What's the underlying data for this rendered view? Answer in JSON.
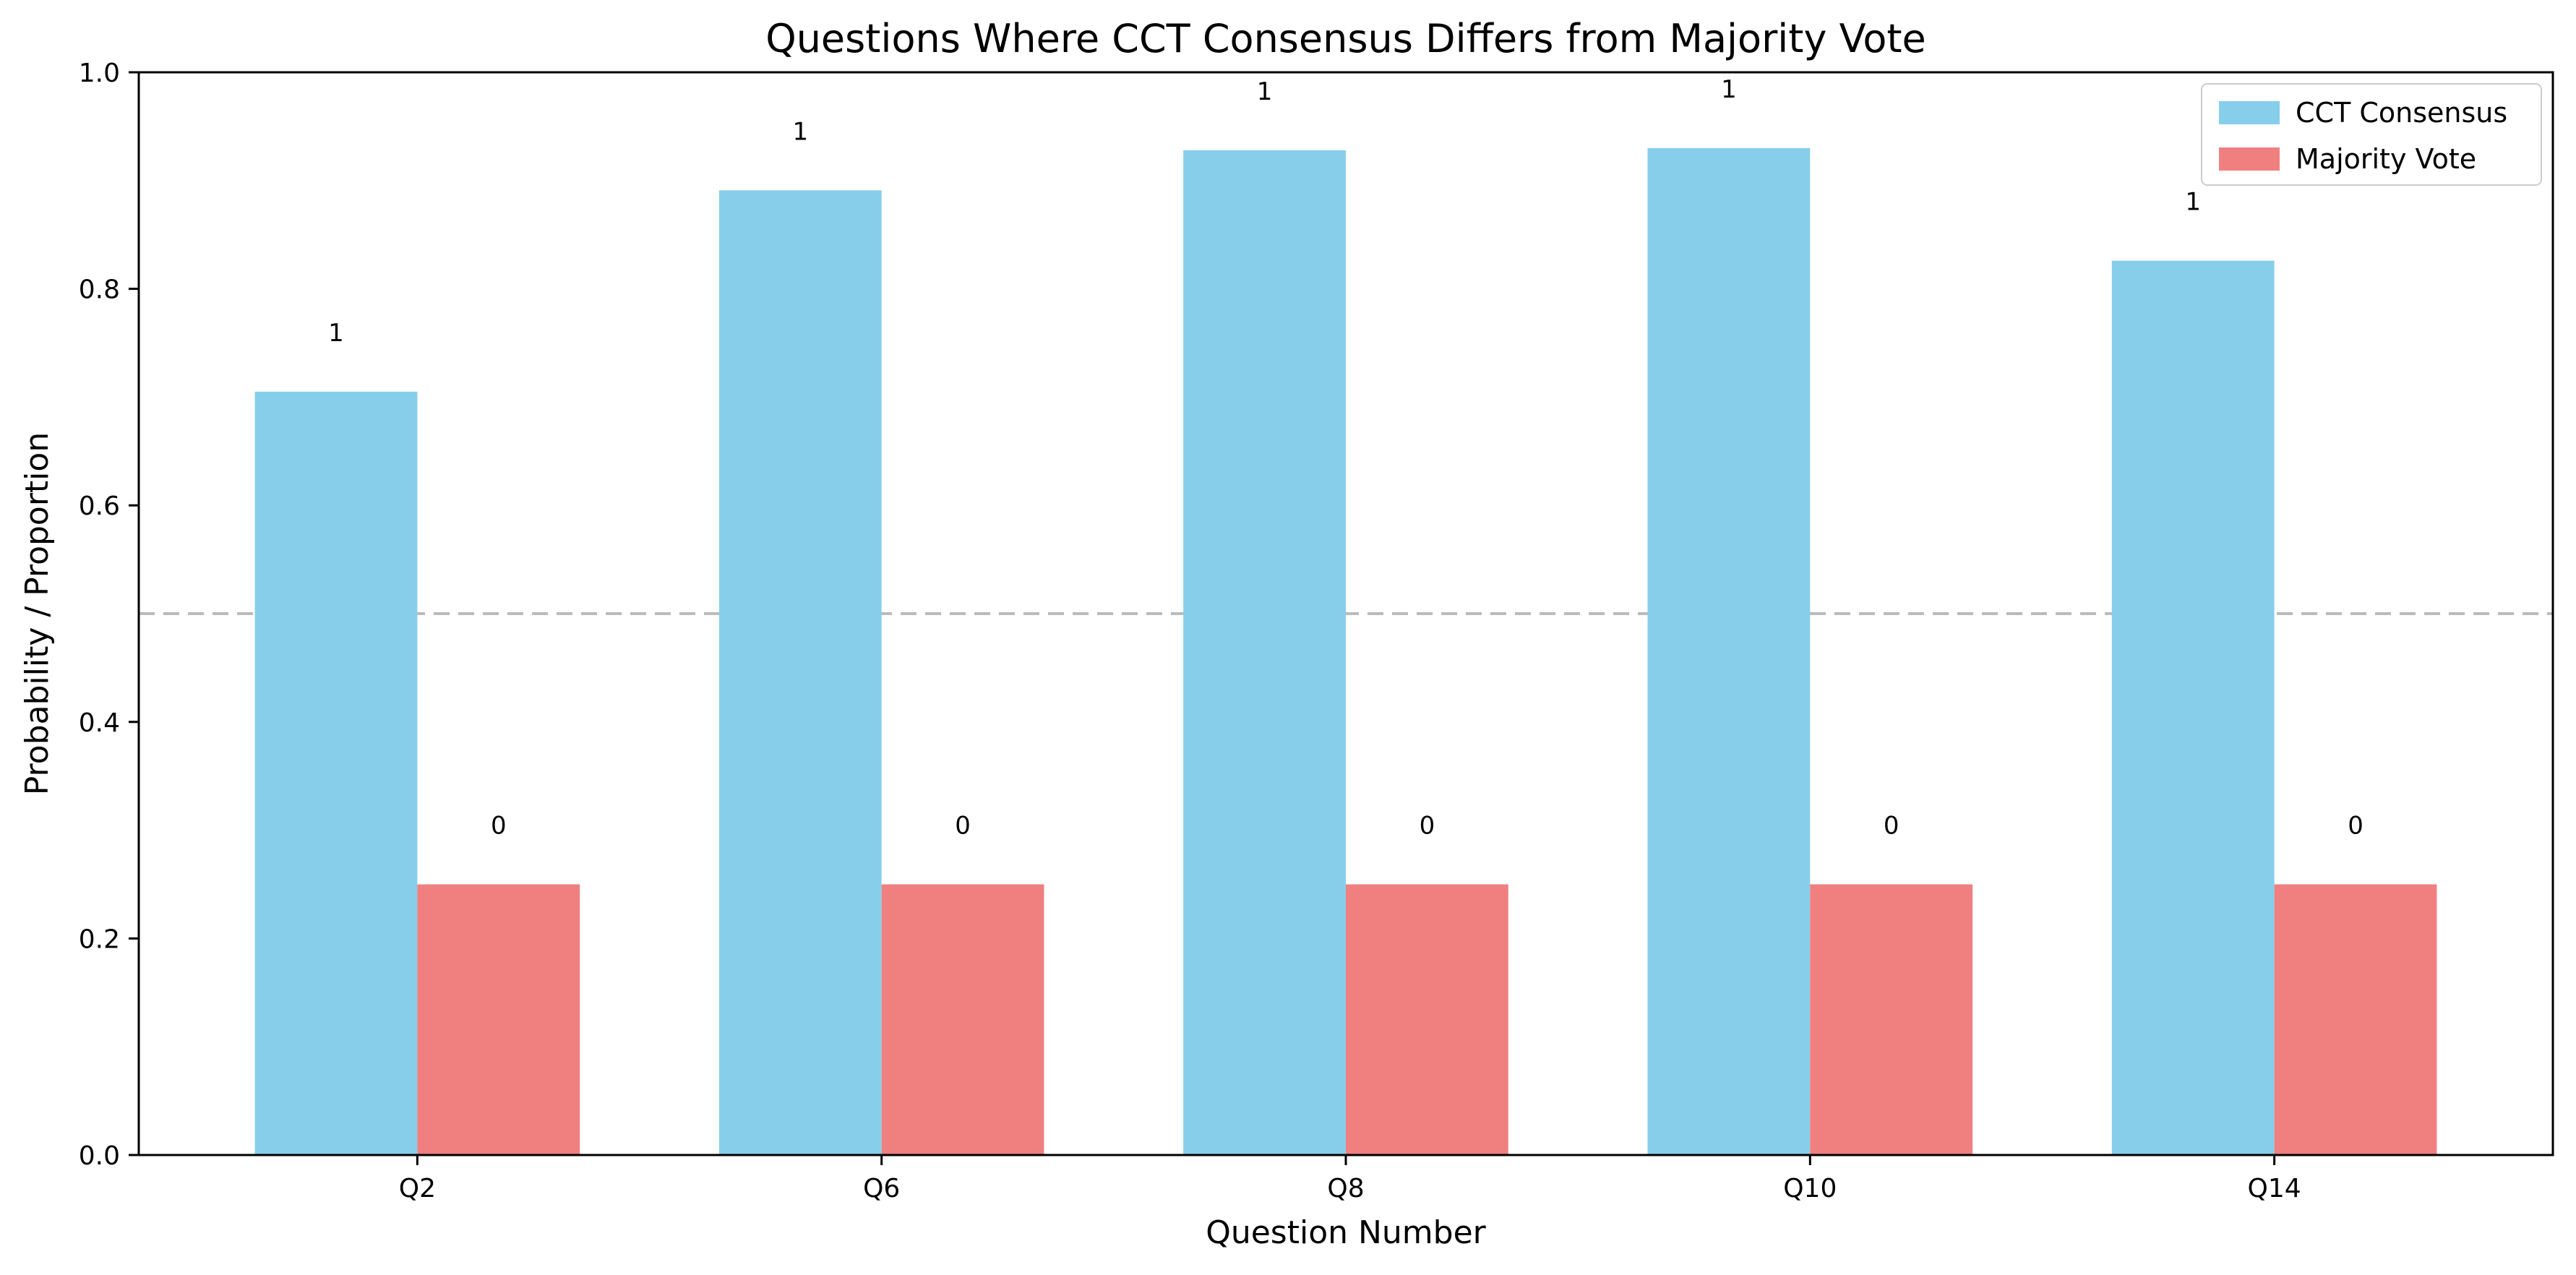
{
  "chart_data": {
    "type": "bar",
    "title": "Questions Where CCT Consensus Differs from Majority Vote",
    "xlabel": "Question Number",
    "ylabel": "Probability / Proportion",
    "categories": [
      "Q2",
      "Q6",
      "Q8",
      "Q10",
      "Q14"
    ],
    "ylim": [
      0,
      1.0
    ],
    "yticks": [
      "0.0",
      "0.2",
      "0.4",
      "0.6",
      "0.8",
      "1.0"
    ],
    "reference_line": {
      "y": 0.5,
      "style": "dashed",
      "color": "#bbbbbb"
    },
    "series": [
      {
        "name": "CCT Consensus",
        "color": "#87CEEB",
        "values": [
          0.705,
          0.891,
          0.928,
          0.93,
          0.826
        ],
        "labels": [
          "1",
          "1",
          "1",
          "1",
          "1"
        ]
      },
      {
        "name": "Majority Vote",
        "color": "#F08080",
        "values": [
          0.25,
          0.25,
          0.25,
          0.25,
          0.25
        ],
        "labels": [
          "0",
          "0",
          "0",
          "0",
          "0"
        ]
      }
    ],
    "legend": "top-right",
    "grid": false
  }
}
